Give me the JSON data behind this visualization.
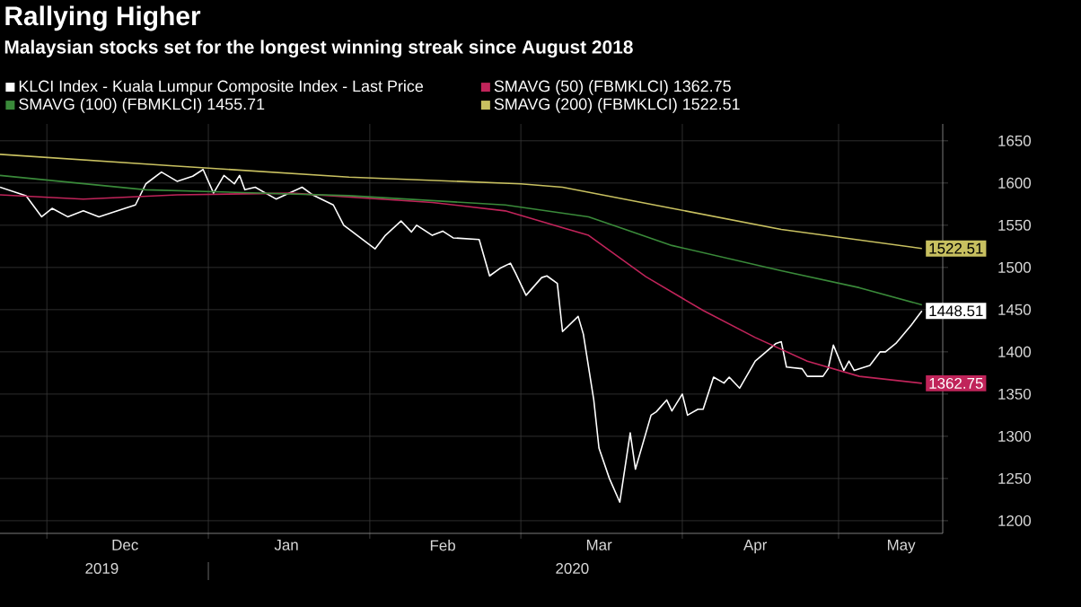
{
  "chart_data": {
    "type": "line",
    "title": "Rallying Higher",
    "subtitle": "Malaysian stocks set for the longest winning streak since August 2018",
    "annotations": [
      "2019",
      "2020"
    ],
    "xlim": [
      "2019-11-22",
      "2020-05-21"
    ],
    "xticks": [
      {
        "value": "2019-12-01",
        "label": null
      },
      {
        "value": "2020-01-01",
        "label": null
      },
      {
        "value": "2020-02-01",
        "label": null
      },
      {
        "value": "2020-03-01",
        "label": null
      },
      {
        "value": "2020-04-01",
        "label": null
      },
      {
        "value": "2020-05-01",
        "label": null
      },
      {
        "value": "2019-12-16",
        "label": "Dec"
      },
      {
        "value": "2020-01-16",
        "label": "Jan"
      },
      {
        "value": "2020-02-15",
        "label": "Feb"
      },
      {
        "value": "2020-03-16",
        "label": "Mar"
      },
      {
        "value": "2020-04-15",
        "label": "Apr"
      },
      {
        "value": "2020-05-13",
        "label": "May"
      }
    ],
    "ylim": [
      1185,
      1670
    ],
    "yticks": [
      1200,
      1250,
      1300,
      1350,
      1400,
      1450,
      1500,
      1550,
      1600,
      1650
    ],
    "grid": true,
    "legend": "top",
    "marker": "none",
    "line_style": "solid",
    "series": [
      {
        "name": "KLCI Index - Kuala Lumpur Composite Index - Last Price",
        "color": "#ffffff",
        "x": [
          "2019-11-22",
          "2019-11-27",
          "2019-11-30",
          "2019-12-02",
          "2019-12-05",
          "2019-12-08",
          "2019-12-11",
          "2019-12-16",
          "2019-12-18",
          "2019-12-20",
          "2019-12-23",
          "2019-12-26",
          "2019-12-29",
          "2019-12-31",
          "2020-01-02",
          "2020-01-04",
          "2020-01-06",
          "2020-01-07",
          "2020-01-08",
          "2020-01-10",
          "2020-01-14",
          "2020-01-19",
          "2020-01-21",
          "2020-01-25",
          "2020-01-27",
          "2020-02-02",
          "2020-02-04",
          "2020-02-07",
          "2020-02-09",
          "2020-02-10",
          "2020-02-13",
          "2020-02-15",
          "2020-02-17",
          "2020-02-22",
          "2020-02-24",
          "2020-02-26",
          "2020-02-28",
          "2020-02-29",
          "2020-03-02",
          "2020-03-05",
          "2020-03-06",
          "2020-03-08",
          "2020-03-09",
          "2020-03-12",
          "2020-03-13",
          "2020-03-15",
          "2020-03-16",
          "2020-03-18",
          "2020-03-20",
          "2020-03-22",
          "2020-03-23",
          "2020-03-26",
          "2020-03-27",
          "2020-03-29",
          "2020-03-30",
          "2020-04-01",
          "2020-04-02",
          "2020-04-04",
          "2020-04-05",
          "2020-04-07",
          "2020-04-09",
          "2020-04-10",
          "2020-04-12",
          "2020-04-15",
          "2020-04-19",
          "2020-04-20",
          "2020-04-21",
          "2020-04-24",
          "2020-04-25",
          "2020-04-28",
          "2020-04-29",
          "2020-04-30",
          "2020-05-02",
          "2020-05-03",
          "2020-05-04",
          "2020-05-07",
          "2020-05-09",
          "2020-05-10",
          "2020-05-12",
          "2020-05-15",
          "2020-05-17"
        ],
        "values": [
          1595,
          1585,
          1560,
          1570,
          1560,
          1567,
          1560,
          1570,
          1574,
          1599,
          1613,
          1602,
          1608,
          1616,
          1588,
          1609,
          1599,
          1609,
          1592,
          1595,
          1581,
          1595,
          1586,
          1574,
          1550,
          1522,
          1538,
          1555,
          1542,
          1550,
          1538,
          1543,
          1535,
          1533,
          1490,
          1499,
          1505,
          1493,
          1467,
          1488,
          1490,
          1481,
          1424,
          1442,
          1421,
          1343,
          1286,
          1250,
          1222,
          1304,
          1261,
          1325,
          1329,
          1343,
          1330,
          1350,
          1325,
          1332,
          1332,
          1370,
          1363,
          1370,
          1357,
          1389,
          1410,
          1412,
          1382,
          1380,
          1371,
          1371,
          1380,
          1408,
          1378,
          1389,
          1378,
          1384,
          1400,
          1400,
          1410,
          1432,
          1448.51
        ],
        "value_labels": [
          null,
          null,
          null,
          null,
          null,
          null,
          null,
          null,
          null,
          null,
          null,
          null,
          null,
          null,
          null,
          null,
          null,
          null,
          null,
          null,
          null,
          null,
          null,
          null,
          null,
          null,
          null,
          null,
          null,
          null,
          null,
          null,
          null,
          null,
          null,
          null,
          null,
          null,
          null,
          null,
          null,
          null,
          null,
          null,
          null,
          null,
          null,
          null,
          null,
          null,
          null,
          null,
          null,
          null,
          null,
          null,
          null,
          null,
          null,
          null,
          null,
          null,
          null,
          null,
          null,
          null,
          null,
          null,
          null,
          null,
          null,
          null,
          null,
          null,
          null,
          null,
          null,
          null,
          null,
          null,
          "1448.51"
        ]
      },
      {
        "name": "SMAVG (50) (FBMKLCI) 1362.75",
        "color": "#c0245a",
        "x": [
          "2019-11-22",
          "2019-12-08",
          "2019-12-26",
          "2020-01-17",
          "2020-02-13",
          "2020-02-27",
          "2020-03-14",
          "2020-03-25",
          "2020-04-05",
          "2020-04-15",
          "2020-04-25",
          "2020-05-05",
          "2020-05-17"
        ],
        "values": [
          1586,
          1581,
          1586,
          1588,
          1577,
          1567,
          1538,
          1489,
          1449,
          1417,
          1389,
          1371,
          1362.75
        ],
        "value_labels": [
          null,
          null,
          null,
          null,
          null,
          null,
          null,
          null,
          null,
          null,
          null,
          null,
          "1362.75"
        ]
      },
      {
        "name": "SMAVG (100) (FBMKLCI) 1455.71",
        "color": "#3a8a3a",
        "x": [
          "2019-11-22",
          "2019-12-20",
          "2020-01-28",
          "2020-02-27",
          "2020-03-14",
          "2020-03-30",
          "2020-04-20",
          "2020-05-05",
          "2020-05-17"
        ],
        "values": [
          1609,
          1592,
          1585,
          1574,
          1560,
          1526,
          1496,
          1476,
          1455.71
        ]
      },
      {
        "name": "SMAVG (200) (FBMKLCI) 1522.51",
        "color": "#c8c060",
        "x": [
          "2019-11-22",
          "2019-12-26",
          "2020-01-28",
          "2020-03-01",
          "2020-03-09",
          "2020-03-30",
          "2020-04-20",
          "2020-05-17"
        ],
        "values": [
          1634,
          1620,
          1607,
          1599,
          1595,
          1570,
          1545,
          1522.51
        ],
        "value_labels": [
          null,
          null,
          null,
          null,
          null,
          null,
          null,
          "1522.51"
        ]
      }
    ]
  }
}
